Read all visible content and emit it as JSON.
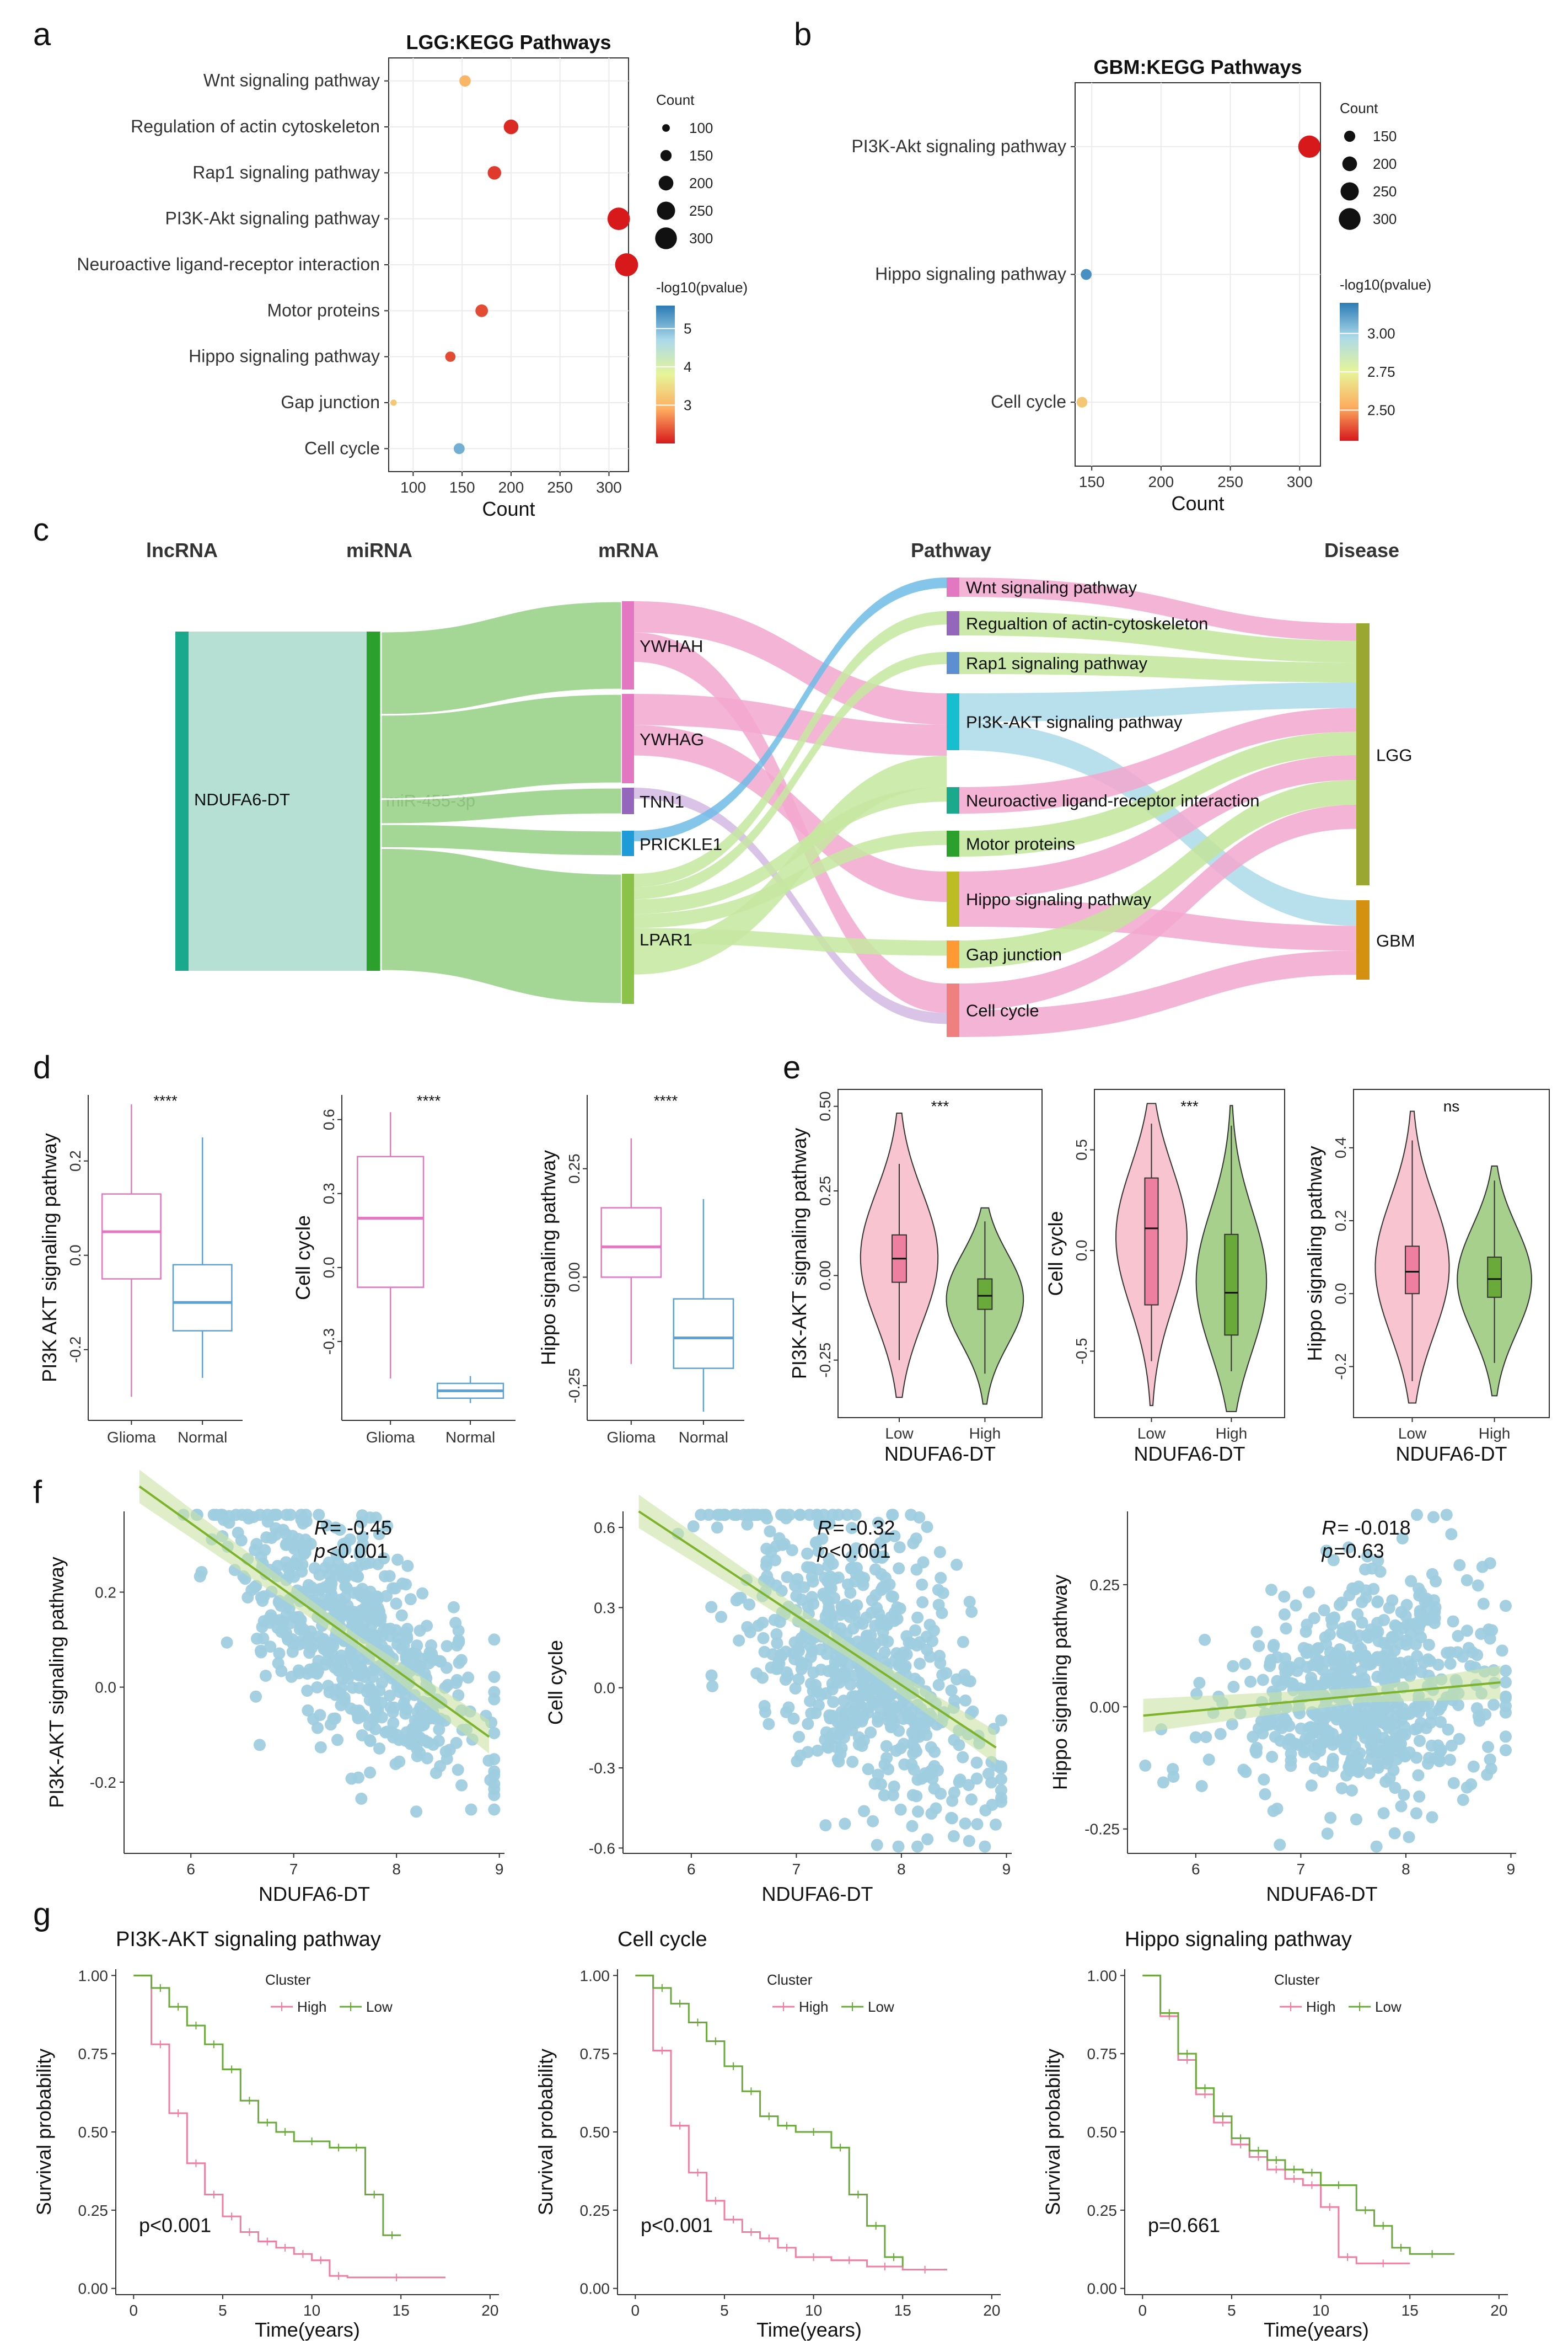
{
  "panels": {
    "a": "a",
    "b": "b",
    "c": "c",
    "d": "d",
    "e": "e",
    "f": "f",
    "g": "g"
  },
  "chart_data": [
    {
      "id": "a",
      "type": "scatter",
      "title": "LGG:KEGG Pathways",
      "xlabel": "Count",
      "xlim": [
        75,
        320
      ],
      "xticks": [
        "100",
        "150",
        "200",
        "250",
        "300"
      ],
      "categories": [
        "Wnt signaling pathway",
        "Regulation of actin cytoskeleton",
        "Rap1 signaling pathway",
        "PI3K-Akt signaling pathway",
        "Neuroactive ligand-receptor interaction",
        "Motor proteins",
        "Hippo signaling pathway",
        "Gap junction",
        "Cell cycle"
      ],
      "counts": [
        153,
        200,
        183,
        310,
        318,
        170,
        138,
        80,
        147
      ],
      "neglog10p": [
        3.0,
        2.1,
        2.2,
        2.0,
        1.9,
        2.3,
        2.3,
        3.2,
        5.1
      ],
      "size_legend_title": "Count",
      "size_legend": [
        "100",
        "150",
        "200",
        "250",
        "300"
      ],
      "color_legend_title": "-log10(pvalue)",
      "color_legend": [
        "5",
        "4",
        "3"
      ],
      "color_range": [
        2.0,
        5.6
      ]
    },
    {
      "id": "b",
      "type": "scatter",
      "title": "GBM:KEGG Pathways",
      "xlabel": "Count",
      "xlim": [
        138,
        315
      ],
      "xticks": [
        "150",
        "200",
        "250",
        "300"
      ],
      "categories": [
        "PI3K-Akt signaling pathway",
        "Hippo signaling pathway",
        "Cell cycle"
      ],
      "counts": [
        307,
        146,
        143
      ],
      "neglog10p": [
        2.3,
        3.15,
        2.6
      ],
      "size_legend_title": "Count",
      "size_legend": [
        "150",
        "200",
        "250",
        "300"
      ],
      "color_legend_title": "-log10(pvalue)",
      "color_legend": [
        "3.00",
        "2.75",
        "2.50"
      ],
      "color_range": [
        2.3,
        3.2
      ]
    },
    {
      "id": "c",
      "type": "sankey",
      "headers": [
        "lncRNA",
        "miRNA",
        "mRNA",
        "Pathway",
        "Disease"
      ],
      "lncrna": "NDUFA6-DT",
      "mirna": "miR-455-3p",
      "mrnas": [
        "YWHAH",
        "YWHAG",
        "TNN1",
        "PRICKLE1",
        "LPAR1"
      ],
      "pathways": [
        "Wnt signaling pathway",
        "Regualtion of actin-cytoskeleton",
        "Rap1 signaling pathway",
        "PI3K-AKT signaling pathway",
        "Neuroactive ligand-receptor interaction",
        "Motor proteins",
        "Hippo signaling pathway",
        "Gap junction",
        "Cell cycle"
      ],
      "diseases": [
        "LGG",
        "GBM"
      ]
    },
    {
      "id": "d",
      "type": "box",
      "groups": [
        "Glioma",
        "Normal"
      ],
      "panels": [
        {
          "ylabel": "PI3K AKT signaling pathway",
          "sig": "****",
          "ylim": [
            -0.35,
            0.34
          ],
          "yticks": [
            -0.2,
            0.0,
            0.2
          ],
          "ytick_labels": [
            "-0.2",
            "0.0",
            "0.2"
          ],
          "boxes": [
            {
              "min": -0.3,
              "q1": -0.05,
              "med": 0.05,
              "q3": 0.13,
              "max": 0.32
            },
            {
              "min": -0.26,
              "q1": -0.16,
              "med": -0.1,
              "q3": -0.02,
              "max": 0.25
            }
          ]
        },
        {
          "ylabel": "Cell cycle",
          "sig": "****",
          "ylim": [
            -0.62,
            0.7
          ],
          "yticks": [
            -0.3,
            0.0,
            0.3,
            0.6
          ],
          "ytick_labels": [
            "-0.3",
            "0.0",
            "0.3",
            "0.6"
          ],
          "boxes": [
            {
              "min": -0.45,
              "q1": -0.08,
              "med": 0.2,
              "q3": 0.45,
              "max": 0.63
            },
            {
              "min": -0.55,
              "q1": -0.53,
              "med": -0.5,
              "q3": -0.47,
              "max": -0.44
            }
          ]
        },
        {
          "ylabel": "Hippo signaling pathway",
          "sig": "****",
          "ylim": [
            -0.33,
            0.42
          ],
          "yticks": [
            -0.25,
            0.0,
            0.25
          ],
          "ytick_labels": [
            "-0.25",
            "0.00",
            "0.25"
          ],
          "boxes": [
            {
              "min": -0.2,
              "q1": 0.0,
              "med": 0.07,
              "q3": 0.16,
              "max": 0.32
            },
            {
              "min": -0.31,
              "q1": -0.21,
              "med": -0.14,
              "q3": -0.05,
              "max": 0.18
            }
          ]
        }
      ]
    },
    {
      "id": "e",
      "type": "violin",
      "xlabel": "NDUFA6-DT",
      "groups": [
        "Low",
        "High"
      ],
      "panels": [
        {
          "ylabel": "PI3K-AKT signaling pathway",
          "sig": "***",
          "ylim": [
            -0.42,
            0.55
          ],
          "yticks": [
            -0.25,
            0.0,
            0.25,
            0.5
          ],
          "ytick_labels": [
            "-0.25",
            "0.00",
            "0.25",
            "0.50"
          ],
          "boxes": [
            {
              "min": -0.25,
              "q1": -0.02,
              "med": 0.05,
              "q3": 0.12,
              "max": 0.33,
              "vmin": -0.36,
              "vmax": 0.48
            },
            {
              "min": -0.29,
              "q1": -0.1,
              "med": -0.06,
              "q3": -0.01,
              "max": 0.16,
              "vmin": -0.38,
              "vmax": 0.2
            }
          ]
        },
        {
          "ylabel": "Cell cycle",
          "sig": "***",
          "ylim": [
            -0.83,
            0.8
          ],
          "yticks": [
            -0.5,
            0.0,
            0.5
          ],
          "ytick_labels": [
            "-0.5",
            "0.0",
            "0.5"
          ],
          "boxes": [
            {
              "min": -0.55,
              "q1": -0.27,
              "med": 0.11,
              "q3": 0.36,
              "max": 0.63,
              "vmin": -0.77,
              "vmax": 0.73
            },
            {
              "min": -0.6,
              "q1": -0.42,
              "med": -0.21,
              "q3": 0.08,
              "max": 0.62,
              "vmin": -0.8,
              "vmax": 0.72
            }
          ]
        },
        {
          "ylabel": "Hippo signaling pathway",
          "sig": "ns",
          "ylim": [
            -0.34,
            0.56
          ],
          "yticks": [
            -0.2,
            0.0,
            0.2,
            0.4
          ],
          "ytick_labels": [
            "-0.2",
            "0.0",
            "0.2",
            "0.4"
          ],
          "boxes": [
            {
              "min": -0.24,
              "q1": 0.0,
              "med": 0.06,
              "q3": 0.13,
              "max": 0.42,
              "vmin": -0.3,
              "vmax": 0.5
            },
            {
              "min": -0.19,
              "q1": -0.01,
              "med": 0.04,
              "q3": 0.1,
              "max": 0.31,
              "vmin": -0.28,
              "vmax": 0.35
            }
          ]
        }
      ]
    },
    {
      "id": "f",
      "type": "scatter",
      "xlabel": "NDUFA6-DT",
      "xlim": [
        5.35,
        9.05
      ],
      "xticks": [
        6,
        7,
        8,
        9
      ],
      "panels": [
        {
          "ylabel": "PI3K-AKT signaling pathway",
          "R": "-0.45",
          "p": "<0.001",
          "ylim": [
            -0.35,
            0.37
          ],
          "yticks": [
            -0.2,
            0.0,
            0.2
          ],
          "ytick_labels": [
            "-0.2",
            "0.0",
            "0.2"
          ],
          "fit": [
            0.19,
            -0.155
          ],
          "sd": 0.11
        },
        {
          "ylabel": "Cell cycle",
          "R": "-0.32",
          "p": "<0.001",
          "ylim": [
            -0.62,
            0.66
          ],
          "yticks": [
            -0.6,
            -0.3,
            0.0,
            0.3,
            0.6
          ],
          "ytick_labels": [
            "-0.6",
            "-0.3",
            "0.0",
            "0.3",
            "0.6"
          ],
          "fit": [
            0.27,
            -0.26
          ],
          "sd": 0.27
        },
        {
          "ylabel": "Hippo signaling pathway",
          "R": "-0.018",
          "p": "=0.63",
          "ylim": [
            -0.3,
            0.4
          ],
          "yticks": [
            -0.25,
            0.0,
            0.25
          ],
          "ytick_labels": [
            "-0.25",
            "0.00",
            "0.25"
          ],
          "fit": [
            0.012,
            0.02
          ],
          "sd": 0.11
        }
      ]
    },
    {
      "id": "g",
      "type": "line",
      "xlabel": "Time(years)",
      "ylabel": "Survival probability",
      "xlim": [
        -1,
        20.5
      ],
      "ylim": [
        -0.02,
        1.02
      ],
      "xticks": [
        0,
        5,
        10,
        15,
        20
      ],
      "yticks": [
        0.0,
        0.25,
        0.5,
        0.75,
        1.0
      ],
      "ytick_labels": [
        "0.00",
        "0.25",
        "0.50",
        "0.75",
        "1.00"
      ],
      "legend_title": "Cluster",
      "legend": [
        "High",
        "Low"
      ],
      "panels": [
        {
          "title": "PI3K-AKT signaling pathway",
          "pval": "p<0.001",
          "series": [
            {
              "name": "High",
              "x": [
                0,
                1,
                2,
                3,
                4,
                5,
                6,
                7,
                8,
                9,
                10,
                11,
                12,
                17.5
              ],
              "y": [
                1.0,
                0.78,
                0.56,
                0.4,
                0.3,
                0.23,
                0.18,
                0.15,
                0.13,
                0.11,
                0.09,
                0.04,
                0.035,
                0.035
              ]
            },
            {
              "name": "Low",
              "x": [
                0,
                1,
                2,
                3,
                4,
                5,
                6,
                7,
                8,
                9,
                11,
                12,
                13,
                14,
                15
              ],
              "y": [
                1.0,
                0.96,
                0.9,
                0.84,
                0.78,
                0.7,
                0.6,
                0.53,
                0.5,
                0.47,
                0.45,
                0.45,
                0.3,
                0.17,
                0.17
              ]
            }
          ]
        },
        {
          "title": "Cell cycle",
          "pval": "p<0.001",
          "series": [
            {
              "name": "High",
              "x": [
                0,
                1,
                2,
                3,
                4,
                5,
                6,
                7,
                8,
                9,
                11,
                13,
                15,
                17.5
              ],
              "y": [
                1.0,
                0.76,
                0.52,
                0.37,
                0.28,
                0.22,
                0.18,
                0.16,
                0.13,
                0.1,
                0.09,
                0.07,
                0.06,
                0.06
              ]
            },
            {
              "name": "Low",
              "x": [
                0,
                1,
                2,
                3,
                4,
                5,
                6,
                7,
                8,
                9,
                11,
                12,
                13,
                14,
                15
              ],
              "y": [
                1.0,
                0.96,
                0.91,
                0.85,
                0.79,
                0.71,
                0.63,
                0.55,
                0.52,
                0.5,
                0.45,
                0.3,
                0.2,
                0.1,
                0.07
              ]
            }
          ]
        },
        {
          "title": "Hippo signaling pathway",
          "pval": "p=0.661",
          "series": [
            {
              "name": "High",
              "x": [
                0,
                1,
                2,
                3,
                4,
                5,
                6,
                7,
                8,
                9,
                10,
                11,
                12,
                15
              ],
              "y": [
                1.0,
                0.87,
                0.73,
                0.62,
                0.53,
                0.46,
                0.42,
                0.38,
                0.35,
                0.33,
                0.26,
                0.1,
                0.08,
                0.08
              ]
            },
            {
              "name": "Low",
              "x": [
                0,
                1,
                2,
                3,
                4,
                5,
                6,
                7,
                8,
                9,
                10,
                12,
                13,
                14,
                15,
                17.5
              ],
              "y": [
                1.0,
                0.88,
                0.75,
                0.64,
                0.55,
                0.48,
                0.44,
                0.41,
                0.38,
                0.37,
                0.33,
                0.25,
                0.2,
                0.13,
                0.11,
                0.11
              ]
            }
          ]
        }
      ]
    }
  ]
}
